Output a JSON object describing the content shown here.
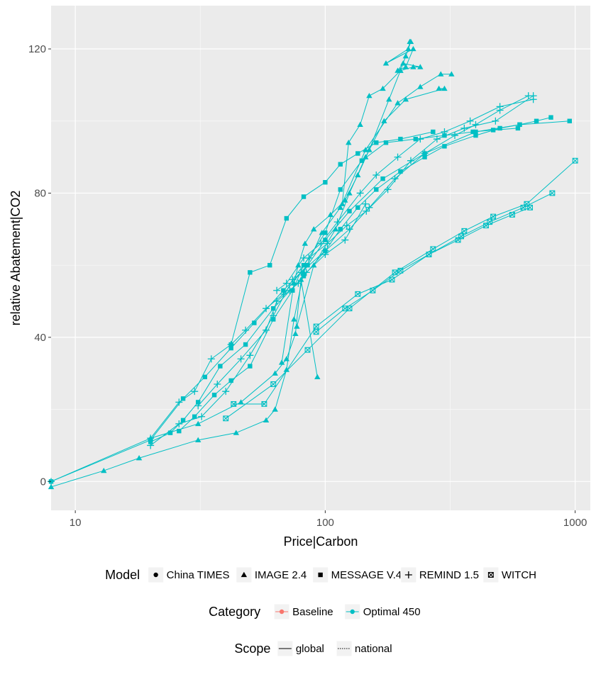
{
  "chart_data": {
    "type": "line",
    "xlabel": "Price|Carbon",
    "ylabel": "relative Abatement|CO2",
    "x_scale": "log",
    "xlim": [
      8,
      1150
    ],
    "ylim": [
      -8,
      132
    ],
    "x_ticks": [
      {
        "value": 10,
        "label": "10"
      },
      {
        "value": 100,
        "label": "100"
      },
      {
        "value": 1000,
        "label": "1000"
      }
    ],
    "y_ticks": [
      {
        "value": 0,
        "label": "0"
      },
      {
        "value": 40,
        "label": "40"
      },
      {
        "value": 80,
        "label": "80"
      },
      {
        "value": 120,
        "label": "120"
      }
    ],
    "grid": true,
    "line_color": "#00BFC4",
    "legends": [
      {
        "title": "Model",
        "items": [
          {
            "label": "China TIMES",
            "shape": "circle"
          },
          {
            "label": "IMAGE 2.4",
            "shape": "triangle"
          },
          {
            "label": "MESSAGE V.4",
            "shape": "square"
          },
          {
            "label": "REMIND 1.5",
            "shape": "plus"
          },
          {
            "label": "WITCH",
            "shape": "boxed-x"
          }
        ]
      },
      {
        "title": "Category",
        "items": [
          {
            "label": "Baseline",
            "color": "#F8766D"
          },
          {
            "label": "Optimal 450",
            "color": "#00BFC4"
          }
        ]
      },
      {
        "title": "Scope",
        "items": [
          {
            "label": "global",
            "linetype": "solid"
          },
          {
            "label": "national",
            "linetype": "dotted"
          }
        ]
      }
    ],
    "series": [
      {
        "model": "IMAGE 2.4",
        "shape": "triangle",
        "x": [
          8,
          13,
          18,
          31,
          44,
          58,
          63,
          70,
          75,
          82,
          97,
          115,
          145,
          195,
          240,
          290,
          320
        ],
        "y": [
          -1.5,
          3,
          6.5,
          11.5,
          13.5,
          17,
          20,
          31,
          45,
          58,
          69,
          76,
          92,
          105,
          109.5,
          113,
          113
        ]
      },
      {
        "model": "IMAGE 2.4",
        "shape": "triangle",
        "x": [
          20,
          31,
          46,
          63,
          70,
          76,
          80,
          93
        ],
        "y": [
          12,
          16,
          22,
          30,
          34,
          41,
          56,
          29
        ]
      },
      {
        "model": "IMAGE 2.4",
        "shape": "triangle",
        "x": [
          67,
          75,
          78,
          83,
          90,
          105,
          120,
          135,
          150,
          180,
          200,
          210,
          220
        ],
        "y": [
          33,
          55,
          60,
          66,
          70,
          74,
          78,
          85,
          92,
          106,
          114,
          118,
          122
        ]
      },
      {
        "model": "IMAGE 2.4",
        "shape": "triangle",
        "x": [
          77,
          90,
          110,
          125,
          145,
          172,
          210,
          300,
          285
        ],
        "y": [
          43,
          60,
          70,
          80,
          90,
          100,
          106,
          109,
          109
        ]
      },
      {
        "model": "IMAGE 2.4",
        "shape": "triangle",
        "x": [
          117,
          124,
          138,
          150,
          170,
          200,
          225,
          240,
          205,
          195,
          210,
          225,
          175,
          215,
          218
        ],
        "y": [
          77,
          94,
          99,
          107,
          109,
          114,
          115,
          115,
          116,
          114,
          115,
          120,
          116,
          120,
          122
        ]
      },
      {
        "model": "MESSAGE V.4",
        "shape": "square",
        "x": [
          8,
          20,
          27,
          33,
          42,
          52,
          68,
          85,
          100,
          125,
          170,
          250,
          400,
          600,
          950
        ],
        "y": [
          0,
          11.5,
          23,
          29,
          37,
          44,
          53,
          60,
          67,
          75,
          84,
          91,
          97,
          99,
          100
        ]
      },
      {
        "model": "MESSAGE V.4",
        "shape": "square",
        "x": [
          20,
          24,
          27,
          31,
          38,
          48,
          62,
          82,
          100,
          115,
          135,
          160,
          200,
          250,
          300,
          400,
          500,
          600,
          700,
          800
        ],
        "y": [
          11,
          13.5,
          17,
          22,
          32,
          38,
          48,
          57,
          64,
          70,
          76,
          81,
          86,
          90,
          93,
          96,
          98,
          99,
          100,
          101
        ]
      },
      {
        "model": "MESSAGE V.4",
        "shape": "square",
        "x": [
          26,
          30,
          36,
          42,
          50,
          62,
          74,
          82,
          100,
          115,
          140,
          175,
          230,
          300,
          390,
          470,
          590
        ],
        "y": [
          14,
          18,
          24,
          28,
          32,
          45,
          53,
          60,
          69,
          81,
          89,
          94,
          95,
          96,
          97,
          97.5,
          98
        ]
      },
      {
        "model": "MESSAGE V.4",
        "shape": "square",
        "x": [
          42,
          50,
          60,
          70,
          82,
          100,
          115,
          135,
          160,
          200,
          270
        ],
        "y": [
          38,
          58,
          60,
          73,
          79,
          83,
          88,
          91,
          94,
          95,
          97
        ]
      },
      {
        "model": "REMIND 1.5",
        "shape": "plus",
        "x": [
          8,
          20,
          26,
          30,
          35,
          42,
          48,
          58,
          68,
          80,
          100,
          125,
          150,
          190,
          250,
          330,
          400,
          500,
          650
        ],
        "y": [
          0,
          12,
          22,
          25,
          34,
          38,
          42,
          48,
          52,
          58,
          64,
          70,
          76,
          84,
          91,
          96,
          99,
          103,
          107
        ]
      },
      {
        "model": "REMIND 1.5",
        "shape": "plus",
        "x": [
          20,
          26,
          32,
          40,
          50,
          62,
          74,
          86,
          102,
          122,
          146,
          178,
          220,
          280,
          360,
          480,
          680
        ],
        "y": [
          10,
          16,
          18,
          25,
          35,
          46,
          56,
          62,
          66,
          71,
          75,
          81,
          89,
          95,
          98,
          100,
          107
        ]
      },
      {
        "model": "REMIND 1.5",
        "shape": "plus",
        "x": [
          31,
          37,
          46,
          58,
          64,
          72,
          78,
          84,
          100,
          120,
          145
        ],
        "y": [
          21,
          27,
          34,
          42,
          50,
          53,
          55,
          58,
          63,
          67,
          77
        ]
      },
      {
        "model": "REMIND 1.5",
        "shape": "plus",
        "x": [
          64,
          70,
          82,
          96,
          112,
          138,
          160,
          195,
          240,
          300,
          380,
          500,
          680
        ],
        "y": [
          53,
          55,
          62,
          66,
          72,
          80,
          85,
          90,
          95,
          97,
          100,
          104,
          106
        ]
      },
      {
        "model": "WITCH",
        "shape": "boxed-x",
        "x": [
          40,
          62,
          85,
          125,
          190,
          270,
          360,
          470,
          640,
          1000
        ],
        "y": [
          17.5,
          27,
          36.5,
          48,
          58,
          64.5,
          69.5,
          73.5,
          77,
          89
        ]
      },
      {
        "model": "WITCH",
        "shape": "boxed-x",
        "x": [
          43,
          57,
          92,
          135,
          185,
          260,
          350,
          455,
          620,
          810
        ],
        "y": [
          21.5,
          21.5,
          43,
          52,
          56,
          63,
          68,
          72,
          76,
          80
        ]
      },
      {
        "model": "WITCH",
        "shape": "boxed-x",
        "x": [
          92,
          120,
          155,
          200,
          260,
          340,
          440,
          560,
          660
        ],
        "y": [
          41.5,
          48,
          53,
          58.5,
          63,
          67,
          71,
          74,
          76
        ]
      }
    ]
  }
}
